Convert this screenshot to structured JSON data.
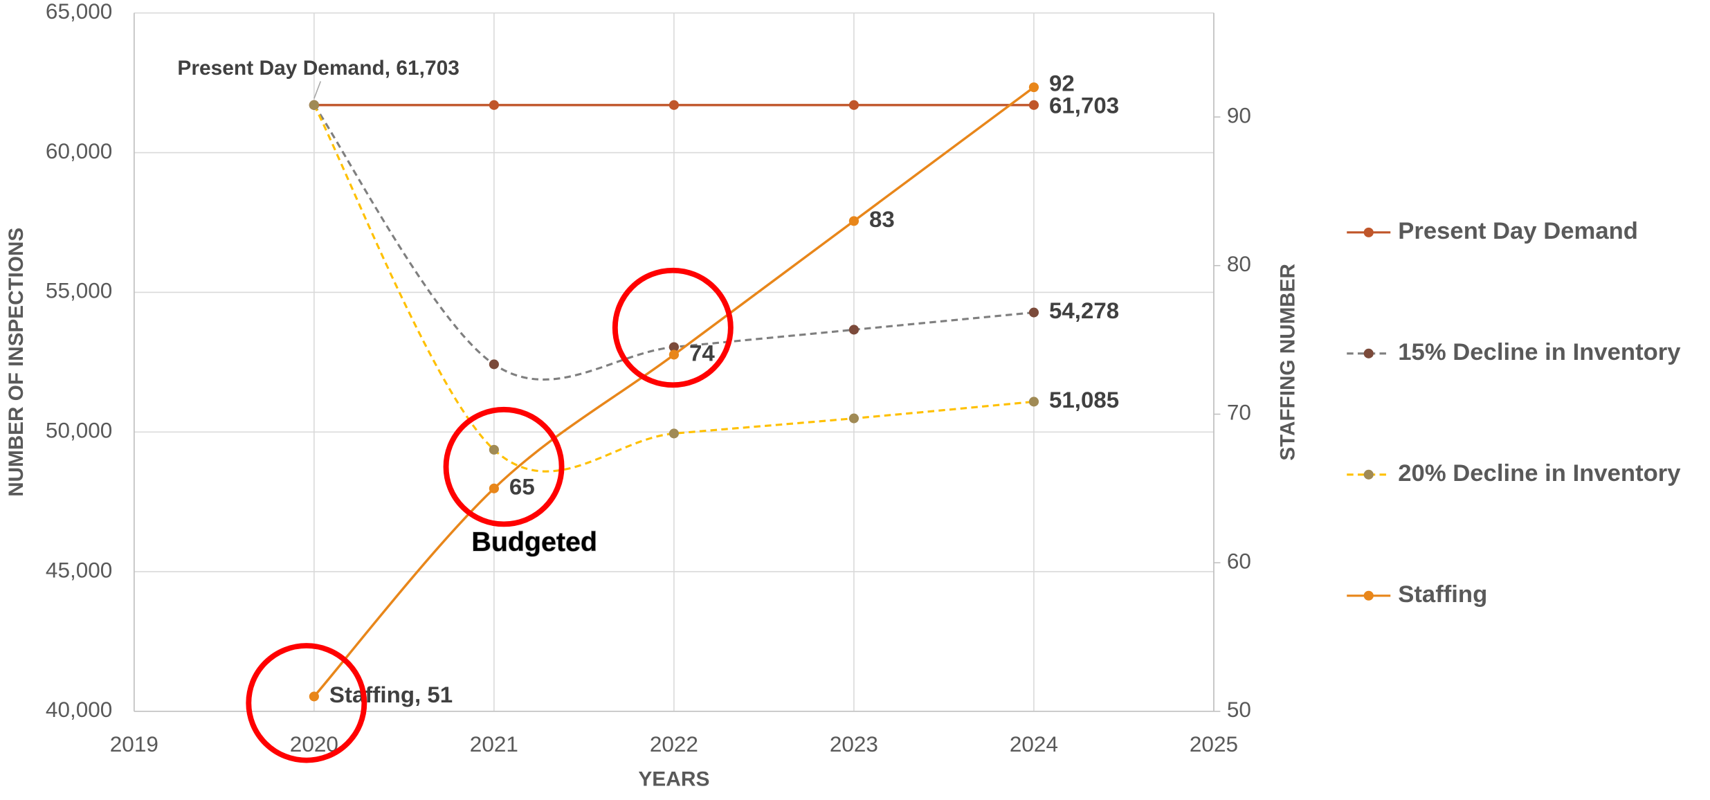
{
  "chart_data": {
    "type": "line",
    "x": [
      2020,
      2021,
      2022,
      2023,
      2024
    ],
    "xlim": [
      2019,
      2025
    ],
    "xticks": [
      2019,
      2020,
      2021,
      2022,
      2023,
      2024,
      2025
    ],
    "ylim": [
      40000,
      65000
    ],
    "yticks": [
      {
        "value": 40000,
        "label": "40,000"
      },
      {
        "value": 45000,
        "label": "45,000"
      },
      {
        "value": 50000,
        "label": "50,000"
      },
      {
        "value": 55000,
        "label": "55,000"
      },
      {
        "value": 60000,
        "label": "60,000"
      },
      {
        "value": 65000,
        "label": "65,000"
      }
    ],
    "y2lim": [
      50,
      97
    ],
    "y2ticks": [
      50,
      60,
      70,
      80,
      90
    ],
    "xlabel": "YEARS",
    "ylabel": "NUMBER OF INSPECTIONS",
    "y2label": "STAFFING NUMBER",
    "grid": true,
    "smooth": true,
    "legend": "right",
    "series": [
      {
        "name": "Present Day Demand",
        "color": "#c0562a",
        "marker_color": "#c0562a",
        "dashed": false,
        "values": [
          61703,
          61703,
          61703,
          61703,
          61703
        ],
        "value_labels": [
          "Present Day Demand, 61,703",
          null,
          null,
          null,
          "61,703"
        ]
      },
      {
        "name": "15% Decline in Inventory",
        "color": "#7f7f7f",
        "marker_color": "#7b4a3a",
        "dashed": true,
        "values": [
          61703,
          52423,
          53041,
          53661,
          54278
        ],
        "value_labels": [
          null,
          null,
          null,
          null,
          "54,278"
        ]
      },
      {
        "name": "20% Decline in Inventory",
        "color": "#ffc000",
        "marker_color": "#a08a55",
        "dashed": true,
        "values": [
          61703,
          49365,
          49946,
          50488,
          51085
        ],
        "value_labels": [
          null,
          null,
          null,
          null,
          "51,085"
        ]
      },
      {
        "name": "Staffing",
        "color": "#e8861a",
        "marker_color": "#e8861a",
        "dashed": false,
        "axis": "y2",
        "values": [
          51,
          65,
          74,
          83,
          92
        ],
        "value_labels": [
          "Staffing, 51",
          "65",
          "74",
          "83",
          "92"
        ]
      }
    ],
    "annotations": [
      "Budgeted"
    ]
  }
}
